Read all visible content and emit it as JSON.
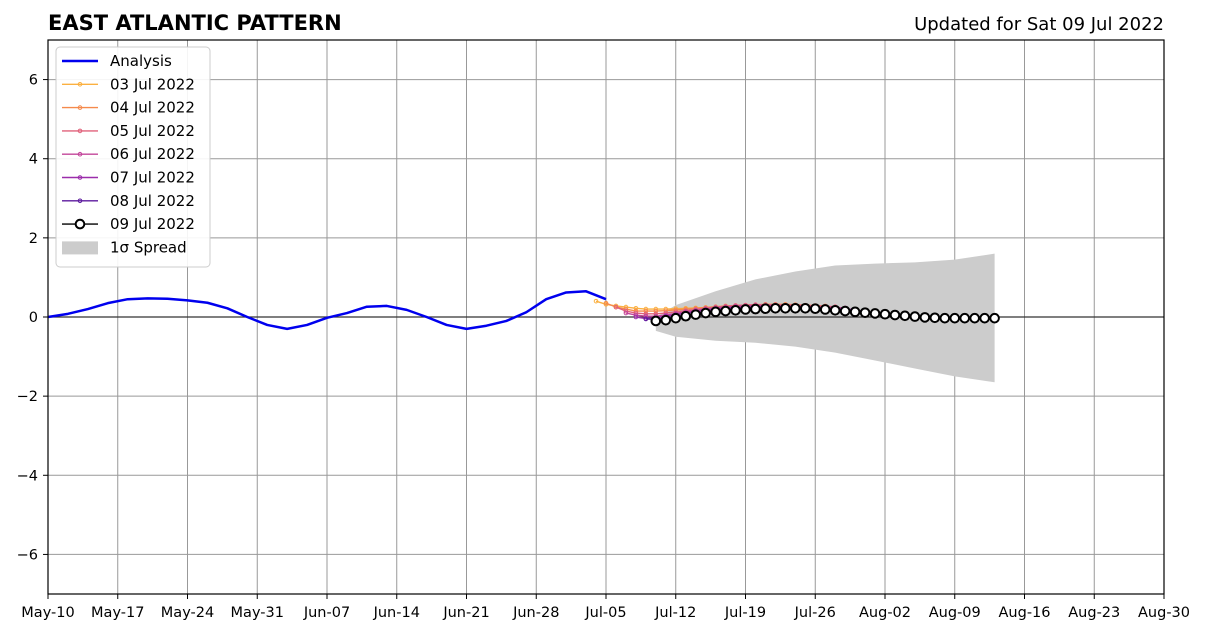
{
  "chart_data": {
    "type": "line",
    "title": "EAST ATLANTIC PATTERN",
    "subtitle": "Updated for Sat 09 Jul 2022",
    "xlabel": "",
    "ylabel": "",
    "x_start_date": "2022-05-10",
    "x_tick_labels": [
      "May-10",
      "May-17",
      "May-24",
      "May-31",
      "Jun-07",
      "Jun-14",
      "Jun-21",
      "Jun-28",
      "Jul-05",
      "Jul-12",
      "Jul-19",
      "Jul-26",
      "Aug-02",
      "Aug-09",
      "Aug-16",
      "Aug-23",
      "Aug-30"
    ],
    "xlim": [
      "2022-05-10",
      "2022-08-30"
    ],
    "y_ticks": [
      -6,
      -4,
      -2,
      0,
      2,
      4,
      6
    ],
    "y_tick_labels": [
      "−6",
      "−4",
      "−2",
      "0",
      "2",
      "4",
      "6"
    ],
    "ylim": [
      -7,
      7
    ],
    "grid": true,
    "legend_position": "top-left",
    "series": [
      {
        "name": "Analysis",
        "color": "#0000ee",
        "x": [
          "2022-05-10",
          "2022-05-12",
          "2022-05-14",
          "2022-05-16",
          "2022-05-18",
          "2022-05-20",
          "2022-05-22",
          "2022-05-24",
          "2022-05-26",
          "2022-05-28",
          "2022-05-30",
          "2022-06-01",
          "2022-06-03",
          "2022-06-05",
          "2022-06-07",
          "2022-06-09",
          "2022-06-11",
          "2022-06-13",
          "2022-06-15",
          "2022-06-17",
          "2022-06-19",
          "2022-06-21",
          "2022-06-23",
          "2022-06-25",
          "2022-06-27",
          "2022-06-29",
          "2022-07-01",
          "2022-07-03",
          "2022-07-05"
        ],
        "values": [
          0.0,
          0.08,
          0.2,
          0.35,
          0.45,
          0.47,
          0.46,
          0.42,
          0.36,
          0.22,
          0.0,
          -0.2,
          -0.3,
          -0.2,
          -0.02,
          0.1,
          0.26,
          0.28,
          0.18,
          0.0,
          -0.2,
          -0.3,
          -0.22,
          -0.1,
          0.12,
          0.45,
          0.62,
          0.65,
          0.45
        ]
      },
      {
        "name": "03 Jul 2022",
        "color": "#fbb040",
        "x": [
          "2022-07-04",
          "2022-07-05",
          "2022-07-06",
          "2022-07-07",
          "2022-07-08",
          "2022-07-09",
          "2022-07-10",
          "2022-07-11",
          "2022-07-12",
          "2022-07-13",
          "2022-07-14",
          "2022-07-15",
          "2022-07-16",
          "2022-07-17",
          "2022-07-18",
          "2022-07-19",
          "2022-07-20",
          "2022-07-21",
          "2022-07-22",
          "2022-07-23",
          "2022-07-24",
          "2022-07-25",
          "2022-07-26"
        ],
        "values": [
          0.4,
          0.32,
          0.28,
          0.25,
          0.22,
          0.2,
          0.2,
          0.2,
          0.21,
          0.22,
          0.23,
          0.24,
          0.25,
          0.26,
          0.27,
          0.28,
          0.29,
          0.3,
          0.3,
          0.3,
          0.3,
          0.29,
          0.28
        ]
      },
      {
        "name": "04 Jul 2022",
        "color": "#f58a4c",
        "x": [
          "2022-07-05",
          "2022-07-06",
          "2022-07-07",
          "2022-07-08",
          "2022-07-09",
          "2022-07-10",
          "2022-07-11",
          "2022-07-12",
          "2022-07-13",
          "2022-07-14",
          "2022-07-15",
          "2022-07-16",
          "2022-07-17",
          "2022-07-18",
          "2022-07-19",
          "2022-07-20",
          "2022-07-21",
          "2022-07-22",
          "2022-07-23",
          "2022-07-24",
          "2022-07-25",
          "2022-07-26",
          "2022-07-27"
        ],
        "values": [
          0.35,
          0.25,
          0.2,
          0.15,
          0.15,
          0.15,
          0.16,
          0.18,
          0.2,
          0.22,
          0.24,
          0.26,
          0.28,
          0.29,
          0.3,
          0.31,
          0.32,
          0.32,
          0.32,
          0.31,
          0.3,
          0.29,
          0.28
        ]
      },
      {
        "name": "05 Jul 2022",
        "color": "#e0607a",
        "x": [
          "2022-07-06",
          "2022-07-07",
          "2022-07-08",
          "2022-07-09",
          "2022-07-10",
          "2022-07-11",
          "2022-07-12",
          "2022-07-13",
          "2022-07-14",
          "2022-07-15",
          "2022-07-16",
          "2022-07-17",
          "2022-07-18",
          "2022-07-19",
          "2022-07-20",
          "2022-07-21",
          "2022-07-22",
          "2022-07-23",
          "2022-07-24",
          "2022-07-25",
          "2022-07-26",
          "2022-07-27",
          "2022-07-28"
        ],
        "values": [
          0.25,
          0.15,
          0.1,
          0.08,
          0.08,
          0.1,
          0.13,
          0.16,
          0.19,
          0.22,
          0.25,
          0.27,
          0.29,
          0.3,
          0.31,
          0.31,
          0.31,
          0.3,
          0.3,
          0.29,
          0.28,
          0.27,
          0.26
        ]
      },
      {
        "name": "06 Jul 2022",
        "color": "#c2449a",
        "x": [
          "2022-07-07",
          "2022-07-08",
          "2022-07-09",
          "2022-07-10",
          "2022-07-11",
          "2022-07-12",
          "2022-07-13",
          "2022-07-14",
          "2022-07-15",
          "2022-07-16",
          "2022-07-17",
          "2022-07-18",
          "2022-07-19",
          "2022-07-20",
          "2022-07-21",
          "2022-07-22",
          "2022-07-23",
          "2022-07-24",
          "2022-07-25",
          "2022-07-26",
          "2022-07-27",
          "2022-07-28",
          "2022-07-29"
        ],
        "values": [
          0.1,
          0.05,
          0.02,
          0.02,
          0.05,
          0.09,
          0.13,
          0.17,
          0.2,
          0.23,
          0.25,
          0.27,
          0.28,
          0.29,
          0.29,
          0.29,
          0.28,
          0.28,
          0.27,
          0.26,
          0.25,
          0.24,
          0.23
        ]
      },
      {
        "name": "07 Jul 2022",
        "color": "#9b2dab",
        "x": [
          "2022-07-08",
          "2022-07-09",
          "2022-07-10",
          "2022-07-11",
          "2022-07-12",
          "2022-07-13",
          "2022-07-14",
          "2022-07-15",
          "2022-07-16",
          "2022-07-17",
          "2022-07-18",
          "2022-07-19",
          "2022-07-20",
          "2022-07-21",
          "2022-07-22",
          "2022-07-23",
          "2022-07-24",
          "2022-07-25",
          "2022-07-26",
          "2022-07-27",
          "2022-07-28",
          "2022-07-29",
          "2022-07-30"
        ],
        "values": [
          0.0,
          -0.04,
          -0.02,
          0.02,
          0.06,
          0.1,
          0.14,
          0.17,
          0.2,
          0.22,
          0.24,
          0.25,
          0.26,
          0.26,
          0.26,
          0.25,
          0.25,
          0.24,
          0.23,
          0.22,
          0.21,
          0.2,
          0.19
        ]
      },
      {
        "name": "08 Jul 2022",
        "color": "#5c1a9e",
        "x": [
          "2022-07-09",
          "2022-07-10",
          "2022-07-11",
          "2022-07-12",
          "2022-07-13",
          "2022-07-14",
          "2022-07-15",
          "2022-07-16",
          "2022-07-17",
          "2022-07-18",
          "2022-07-19",
          "2022-07-20",
          "2022-07-21",
          "2022-07-22",
          "2022-07-23",
          "2022-07-24",
          "2022-07-25",
          "2022-07-26",
          "2022-07-27",
          "2022-07-28",
          "2022-07-29",
          "2022-07-30",
          "2022-07-31"
        ],
        "values": [
          -0.05,
          -0.06,
          -0.03,
          0.01,
          0.05,
          0.09,
          0.13,
          0.16,
          0.18,
          0.2,
          0.21,
          0.22,
          0.22,
          0.22,
          0.22,
          0.22,
          0.21,
          0.2,
          0.19,
          0.18,
          0.17,
          0.16,
          0.15
        ]
      },
      {
        "name": "09 Jul 2022",
        "color": "#000000",
        "x": [
          "2022-07-10",
          "2022-07-11",
          "2022-07-12",
          "2022-07-13",
          "2022-07-14",
          "2022-07-15",
          "2022-07-16",
          "2022-07-17",
          "2022-07-18",
          "2022-07-19",
          "2022-07-20",
          "2022-07-21",
          "2022-07-22",
          "2022-07-23",
          "2022-07-24",
          "2022-07-25",
          "2022-07-26",
          "2022-07-27",
          "2022-07-28",
          "2022-07-29",
          "2022-07-30",
          "2022-07-31",
          "2022-08-01",
          "2022-08-02",
          "2022-08-03",
          "2022-08-04",
          "2022-08-05",
          "2022-08-06",
          "2022-08-07",
          "2022-08-08",
          "2022-08-09",
          "2022-08-10",
          "2022-08-11",
          "2022-08-12",
          "2022-08-13"
        ],
        "values": [
          -0.1,
          -0.08,
          -0.03,
          0.02,
          0.06,
          0.1,
          0.13,
          0.15,
          0.17,
          0.19,
          0.2,
          0.21,
          0.22,
          0.22,
          0.22,
          0.22,
          0.21,
          0.19,
          0.17,
          0.15,
          0.13,
          0.11,
          0.09,
          0.07,
          0.05,
          0.03,
          0.01,
          -0.01,
          -0.02,
          -0.03,
          -0.03,
          -0.03,
          -0.03,
          -0.03,
          -0.03
        ]
      }
    ],
    "spread": {
      "name": "1σ Spread",
      "color": "#cccccc",
      "x": [
        "2022-07-10",
        "2022-07-12",
        "2022-07-16",
        "2022-07-20",
        "2022-07-24",
        "2022-07-28",
        "2022-08-01",
        "2022-08-05",
        "2022-08-09",
        "2022-08-13"
      ],
      "upper": [
        0.0,
        0.3,
        0.65,
        0.95,
        1.15,
        1.3,
        1.35,
        1.38,
        1.45,
        1.6
      ],
      "lower": [
        -0.35,
        -0.5,
        -0.6,
        -0.65,
        -0.75,
        -0.9,
        -1.1,
        -1.3,
        -1.5,
        -1.65
      ]
    }
  }
}
